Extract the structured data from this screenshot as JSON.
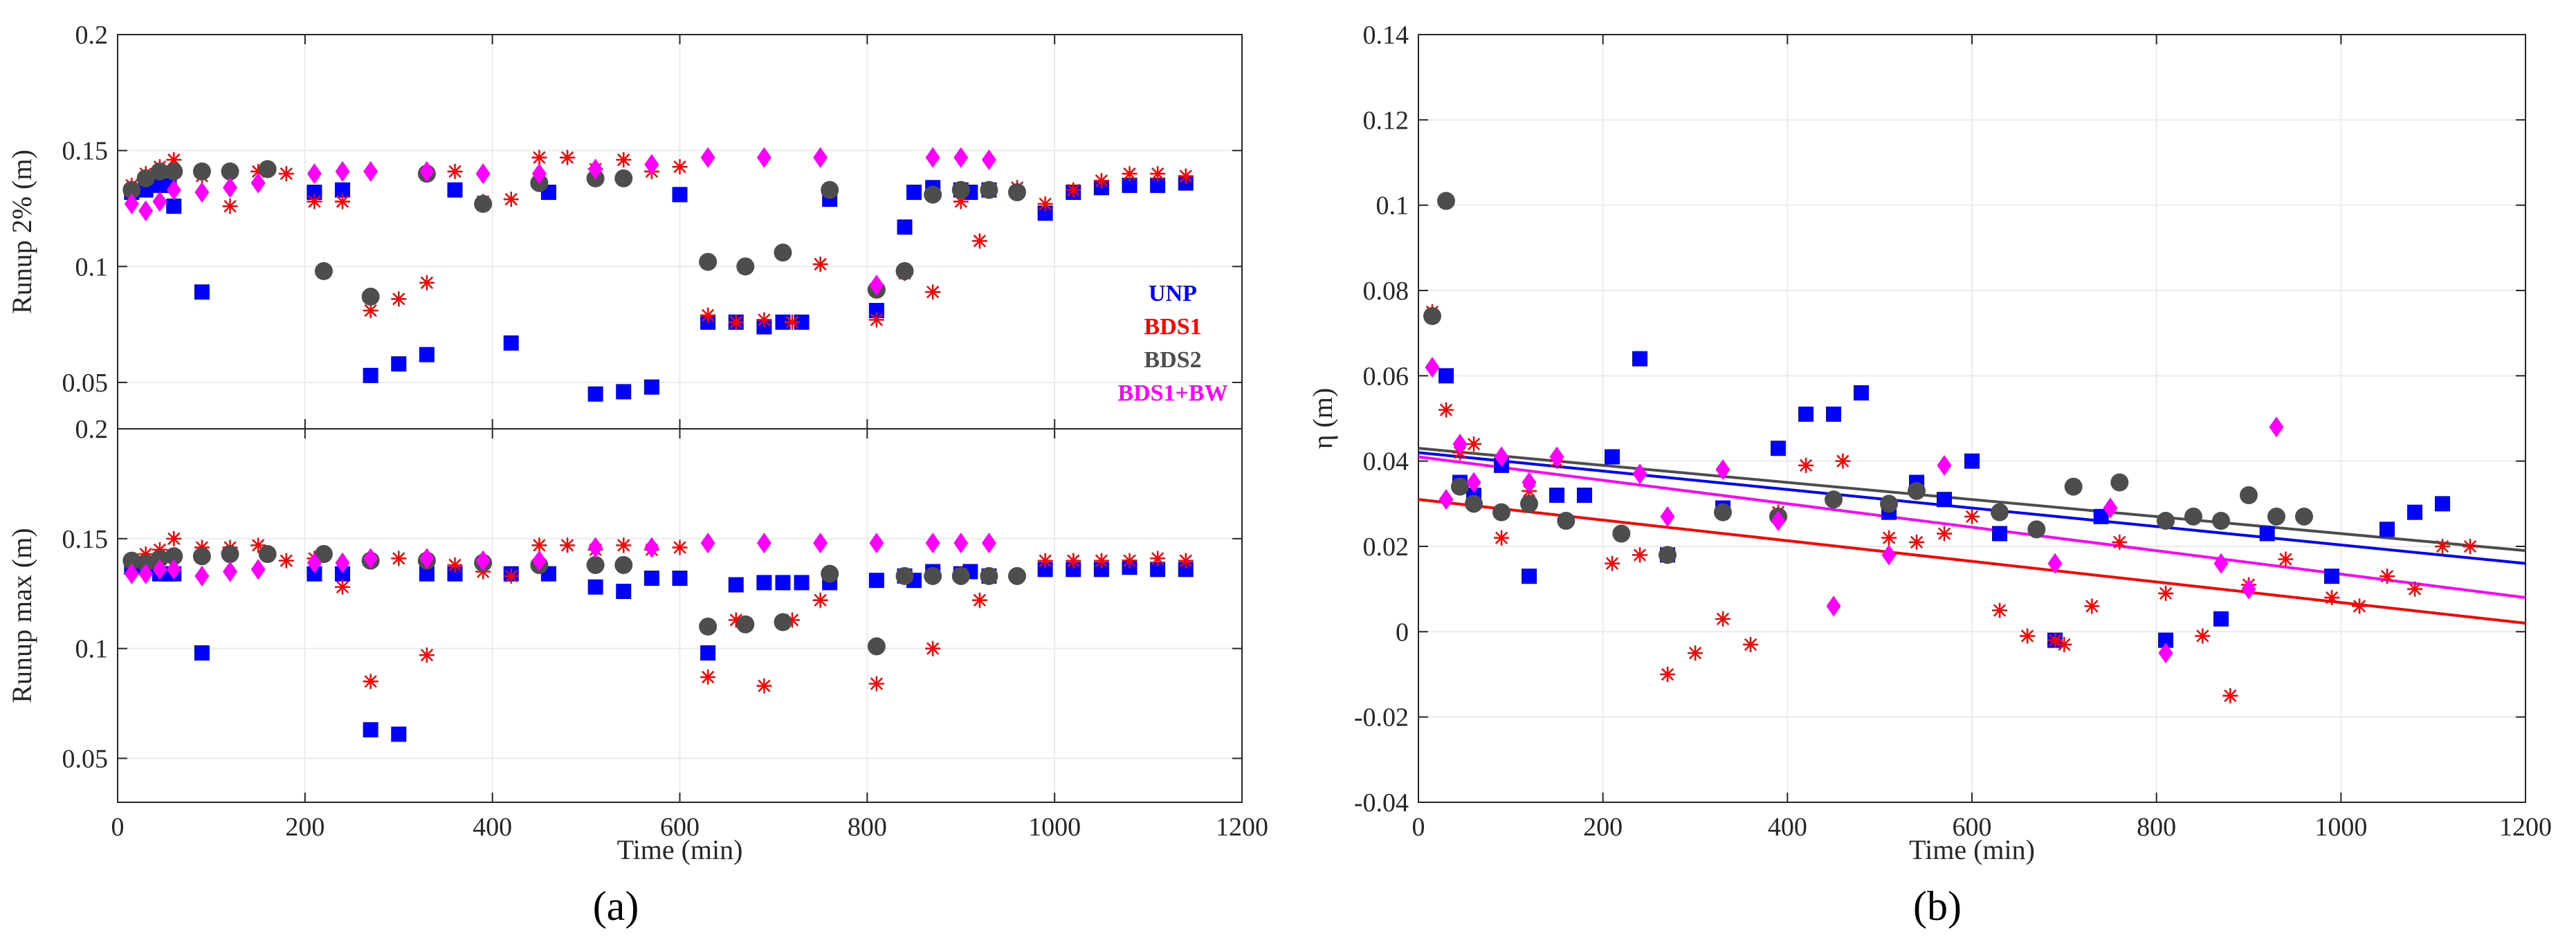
{
  "chart_data": [
    {
      "panel": "a-top",
      "type": "scatter",
      "ylabel": "Runup 2% (m)",
      "xlabel": "",
      "xlim": [
        0,
        1200
      ],
      "ylim": [
        0.03,
        0.2
      ],
      "xticks": [
        0,
        200,
        400,
        600,
        800,
        1000,
        1200
      ],
      "yticks": [
        0.05,
        0.1,
        0.15,
        0.2
      ],
      "ytick_labels": [
        "0.05",
        "0.1",
        "0.15",
        "0.2"
      ],
      "grid": true,
      "legend": {
        "placement": "right",
        "entries": [
          "UNP",
          "BDS1",
          "BDS2",
          "BDS1+BW"
        ]
      },
      "series": [
        {
          "name": "UNP",
          "marker": "square",
          "color": "#0000ff",
          "x": [
            15,
            30,
            45,
            55,
            60,
            90,
            210,
            240,
            270,
            300,
            330,
            360,
            420,
            460,
            510,
            540,
            570,
            600,
            630,
            660,
            690,
            710,
            730,
            760,
            810,
            840,
            850,
            870,
            900,
            910,
            930,
            990,
            1020,
            1050,
            1080,
            1110,
            1140
          ],
          "y": [
            0.132,
            0.133,
            0.135,
            0.135,
            0.126,
            0.089,
            0.132,
            0.133,
            0.053,
            0.058,
            0.062,
            0.133,
            0.067,
            0.132,
            0.045,
            0.046,
            0.048,
            0.131,
            0.076,
            0.076,
            0.074,
            0.076,
            0.076,
            0.129,
            0.081,
            0.117,
            0.132,
            0.134,
            0.133,
            0.132,
            0.133,
            0.123,
            0.132,
            0.134,
            0.135,
            0.135,
            0.136
          ]
        },
        {
          "name": "BDS1",
          "marker": "asterisk",
          "color": "#ff0000",
          "x": [
            15,
            30,
            45,
            60,
            90,
            120,
            150,
            180,
            210,
            240,
            270,
            300,
            330,
            360,
            390,
            420,
            450,
            480,
            510,
            540,
            570,
            600,
            630,
            660,
            690,
            720,
            750,
            810,
            840,
            870,
            900,
            920,
            960,
            990,
            1020,
            1050,
            1080,
            1110,
            1140
          ],
          "y": [
            0.135,
            0.14,
            0.143,
            0.146,
            0.139,
            0.126,
            0.141,
            0.14,
            0.128,
            0.128,
            0.081,
            0.086,
            0.093,
            0.141,
            0.128,
            0.129,
            0.147,
            0.147,
            0.142,
            0.146,
            0.141,
            0.143,
            0.079,
            0.076,
            0.077,
            0.076,
            0.101,
            0.077,
            0.097,
            0.089,
            0.128,
            0.111,
            0.134,
            0.127,
            0.133,
            0.137,
            0.14,
            0.14,
            0.139
          ]
        },
        {
          "name": "BDS2",
          "marker": "circle",
          "color": "#4d4d4d",
          "x": [
            15,
            30,
            45,
            60,
            90,
            120,
            160,
            220,
            270,
            330,
            390,
            450,
            510,
            540,
            630,
            670,
            710,
            760,
            810,
            840,
            870,
            900,
            930,
            960
          ],
          "y": [
            0.133,
            0.138,
            0.141,
            0.141,
            0.141,
            0.141,
            0.142,
            0.098,
            0.087,
            0.14,
            0.127,
            0.136,
            0.138,
            0.138,
            0.102,
            0.1,
            0.106,
            0.133,
            0.09,
            0.098,
            0.131,
            0.133,
            0.133,
            0.132
          ]
        },
        {
          "name": "BDS1+BW",
          "marker": "diamond",
          "color": "#ff00ff",
          "x": [
            15,
            30,
            45,
            60,
            90,
            120,
            150,
            210,
            240,
            270,
            330,
            390,
            450,
            510,
            570,
            630,
            690,
            750,
            810,
            870,
            900,
            930
          ],
          "y": [
            0.127,
            0.124,
            0.128,
            0.133,
            0.132,
            0.134,
            0.136,
            0.14,
            0.141,
            0.141,
            0.141,
            0.14,
            0.14,
            0.142,
            0.144,
            0.147,
            0.147,
            0.147,
            0.092,
            0.147,
            0.147,
            0.146
          ]
        }
      ]
    },
    {
      "panel": "a-bottom",
      "type": "scatter",
      "ylabel": "Runup max (m)",
      "xlabel": "Time (min)",
      "xlim": [
        0,
        1200
      ],
      "ylim": [
        0.03,
        0.2
      ],
      "xticks": [
        0,
        200,
        400,
        600,
        800,
        1000,
        1200
      ],
      "xtick_labels": [
        "0",
        "200",
        "400",
        "600",
        "800",
        "1000",
        "1200"
      ],
      "yticks": [
        0.05,
        0.1,
        0.15,
        0.2
      ],
      "ytick_labels": [
        "0.05",
        "0.1",
        "0.15",
        "0.2"
      ],
      "grid": true,
      "series": [
        {
          "name": "UNP",
          "marker": "square",
          "color": "#0000ff",
          "x": [
            15,
            30,
            45,
            55,
            60,
            90,
            210,
            240,
            270,
            300,
            330,
            360,
            420,
            460,
            510,
            540,
            570,
            600,
            630,
            660,
            690,
            710,
            730,
            760,
            810,
            840,
            850,
            870,
            900,
            910,
            930,
            990,
            1020,
            1050,
            1080,
            1110,
            1140
          ],
          "y": [
            0.137,
            0.138,
            0.134,
            0.134,
            0.134,
            0.098,
            0.134,
            0.134,
            0.063,
            0.061,
            0.134,
            0.134,
            0.134,
            0.134,
            0.128,
            0.126,
            0.132,
            0.132,
            0.098,
            0.129,
            0.13,
            0.13,
            0.13,
            0.13,
            0.131,
            0.133,
            0.131,
            0.135,
            0.134,
            0.135,
            0.133,
            0.136,
            0.136,
            0.136,
            0.137,
            0.136,
            0.136
          ]
        },
        {
          "name": "BDS1",
          "marker": "asterisk",
          "color": "#ff0000",
          "x": [
            15,
            30,
            45,
            60,
            90,
            120,
            150,
            180,
            210,
            240,
            270,
            300,
            330,
            360,
            390,
            420,
            450,
            480,
            510,
            540,
            570,
            600,
            630,
            660,
            690,
            720,
            750,
            810,
            840,
            870,
            900,
            920,
            960,
            990,
            1020,
            1050,
            1080,
            1110,
            1140
          ],
          "y": [
            0.139,
            0.143,
            0.145,
            0.15,
            0.146,
            0.146,
            0.147,
            0.14,
            0.141,
            0.128,
            0.085,
            0.141,
            0.097,
            0.138,
            0.135,
            0.133,
            0.147,
            0.147,
            0.145,
            0.147,
            0.145,
            0.146,
            0.087,
            0.113,
            0.083,
            0.113,
            0.122,
            0.084,
            0.133,
            0.1,
            0.134,
            0.122,
            0.133,
            0.14,
            0.14,
            0.14,
            0.14,
            0.141,
            0.14
          ]
        },
        {
          "name": "BDS2",
          "marker": "circle",
          "color": "#4d4d4d",
          "x": [
            15,
            30,
            45,
            60,
            90,
            120,
            160,
            220,
            270,
            330,
            390,
            450,
            510,
            540,
            630,
            670,
            710,
            760,
            810,
            840,
            870,
            900,
            930,
            960
          ],
          "y": [
            0.14,
            0.139,
            0.141,
            0.142,
            0.142,
            0.143,
            0.143,
            0.143,
            0.14,
            0.14,
            0.139,
            0.138,
            0.138,
            0.138,
            0.11,
            0.111,
            0.112,
            0.134,
            0.101,
            0.133,
            0.133,
            0.133,
            0.133,
            0.133
          ]
        },
        {
          "name": "BDS1+BW",
          "marker": "diamond",
          "color": "#ff00ff",
          "x": [
            15,
            30,
            45,
            60,
            90,
            120,
            150,
            210,
            240,
            270,
            330,
            390,
            450,
            510,
            570,
            630,
            690,
            750,
            810,
            870,
            900,
            930
          ],
          "y": [
            0.134,
            0.134,
            0.136,
            0.136,
            0.133,
            0.135,
            0.136,
            0.139,
            0.139,
            0.141,
            0.141,
            0.14,
            0.14,
            0.146,
            0.146,
            0.148,
            0.148,
            0.148,
            0.148,
            0.148,
            0.148,
            0.148
          ]
        }
      ]
    },
    {
      "panel": "b",
      "type": "scatter",
      "ylabel": "η (m)",
      "xlabel": "Time (min)",
      "xlim": [
        0,
        1200
      ],
      "ylim": [
        -0.04,
        0.14
      ],
      "xticks": [
        0,
        200,
        400,
        600,
        800,
        1000,
        1200
      ],
      "xtick_labels": [
        "0",
        "200",
        "400",
        "600",
        "800",
        "1000",
        "1200"
      ],
      "yticks": [
        -0.04,
        -0.02,
        0,
        0.02,
        0.04,
        0.06,
        0.08,
        0.1,
        0.12,
        0.14
      ],
      "ytick_labels": [
        "-0.04",
        "-0.02",
        "0",
        "0.02",
        "0.04",
        "0.06",
        "0.08",
        "0.1",
        "0.12",
        "0.14"
      ],
      "grid": true,
      "series": [
        {
          "name": "UNP",
          "marker": "square",
          "color": "#0000ff",
          "x": [
            30,
            45,
            60,
            90,
            120,
            150,
            180,
            210,
            240,
            270,
            330,
            390,
            420,
            450,
            480,
            510,
            540,
            570,
            600,
            630,
            690,
            740,
            810,
            870,
            920,
            990,
            1050,
            1080,
            1110
          ],
          "y": [
            0.06,
            0.035,
            0.032,
            0.039,
            0.013,
            0.032,
            0.032,
            0.041,
            0.064,
            0.018,
            0.029,
            0.043,
            0.051,
            0.051,
            0.056,
            0.028,
            0.035,
            0.031,
            0.04,
            0.023,
            -0.002,
            0.027,
            -0.002,
            0.003,
            0.023,
            0.013,
            0.024,
            0.028,
            0.03
          ]
        },
        {
          "name": "BDS1",
          "marker": "asterisk",
          "color": "#ff0000",
          "x": [
            15,
            30,
            45,
            60,
            90,
            120,
            150,
            210,
            240,
            270,
            300,
            330,
            360,
            390,
            420,
            460,
            510,
            540,
            570,
            600,
            630,
            660,
            690,
            700,
            730,
            760,
            810,
            850,
            880,
            900,
            940,
            990,
            1020,
            1050,
            1080,
            1110,
            1140
          ],
          "y": [
            0.075,
            0.052,
            0.042,
            0.044,
            0.022,
            0.033,
            0.04,
            0.016,
            0.018,
            -0.01,
            -0.005,
            0.003,
            -0.003,
            0.028,
            0.039,
            0.04,
            0.022,
            0.021,
            0.023,
            0.027,
            0.005,
            -0.001,
            -0.002,
            -0.003,
            0.006,
            0.021,
            0.009,
            -0.001,
            -0.015,
            0.011,
            0.017,
            0.008,
            0.006,
            0.013,
            0.01,
            0.02,
            0.02
          ]
        },
        {
          "name": "BDS2",
          "marker": "circle",
          "color": "#4d4d4d",
          "x": [
            15,
            30,
            45,
            60,
            90,
            120,
            160,
            220,
            270,
            330,
            390,
            450,
            510,
            540,
            630,
            670,
            710,
            760,
            810,
            840,
            870,
            900,
            930,
            960
          ],
          "y": [
            0.074,
            0.101,
            0.034,
            0.03,
            0.028,
            0.03,
            0.026,
            0.023,
            0.018,
            0.028,
            0.027,
            0.031,
            0.03,
            0.033,
            0.028,
            0.024,
            0.034,
            0.035,
            0.026,
            0.027,
            0.026,
            0.032,
            0.027,
            0.027
          ]
        },
        {
          "name": "BDS1+BW",
          "marker": "diamond",
          "color": "#ff00ff",
          "x": [
            15,
            30,
            45,
            60,
            90,
            120,
            150,
            240,
            270,
            330,
            390,
            450,
            510,
            570,
            690,
            750,
            810,
            870,
            900,
            930
          ],
          "y": [
            0.062,
            0.031,
            0.044,
            0.035,
            0.041,
            0.035,
            0.041,
            0.037,
            0.027,
            0.038,
            0.026,
            0.006,
            0.018,
            0.039,
            0.016,
            0.029,
            -0.005,
            0.016,
            0.01,
            0.048
          ]
        }
      ],
      "trendlines": [
        {
          "name": "UNP fit",
          "color": "#0000ff",
          "x": [
            0,
            1200
          ],
          "y": [
            0.042,
            0.016
          ]
        },
        {
          "name": "BDS1 fit",
          "color": "#ff0000",
          "x": [
            0,
            1200
          ],
          "y": [
            0.031,
            0.002
          ]
        },
        {
          "name": "BDS2 fit",
          "color": "#4d4d4d",
          "x": [
            0,
            1200
          ],
          "y": [
            0.043,
            0.019
          ]
        },
        {
          "name": "BDS1+BW fit",
          "color": "#ff00ff",
          "x": [
            0,
            1200
          ],
          "y": [
            0.041,
            0.008
          ]
        }
      ]
    }
  ],
  "panel_labels": {
    "a": "(a)",
    "b": "(b)"
  },
  "colors": {
    "axis": "#262626",
    "grid": "#ebebeb"
  }
}
